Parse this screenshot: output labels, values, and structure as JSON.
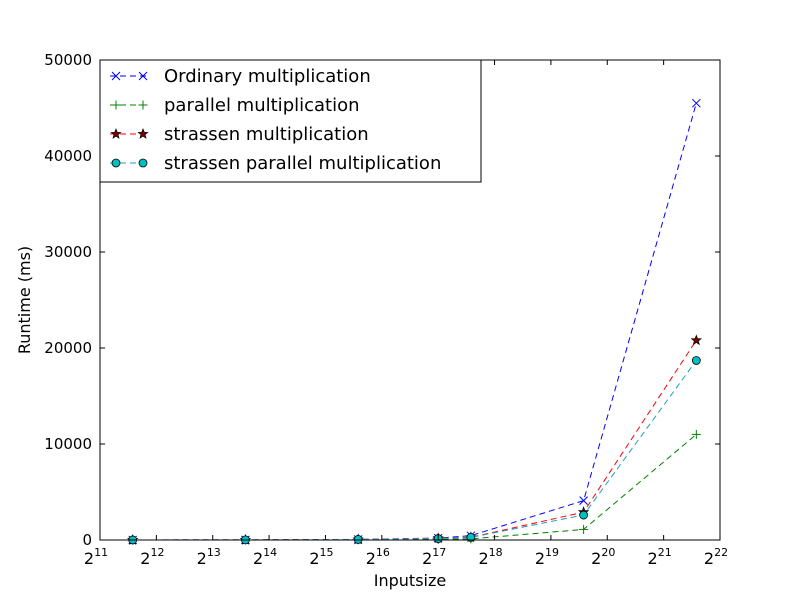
{
  "chart_data": {
    "type": "line",
    "title": "",
    "xlabel": "Inputsize",
    "ylabel": "Runtime (ms)",
    "x_scale": "log2",
    "xlim_exponent": [
      11,
      22
    ],
    "ylim": [
      0,
      50000
    ],
    "x_ticks": [
      {
        "base": "2",
        "exp": "11"
      },
      {
        "base": "2",
        "exp": "12"
      },
      {
        "base": "2",
        "exp": "13"
      },
      {
        "base": "2",
        "exp": "14"
      },
      {
        "base": "2",
        "exp": "15"
      },
      {
        "base": "2",
        "exp": "16"
      },
      {
        "base": "2",
        "exp": "17"
      },
      {
        "base": "2",
        "exp": "18"
      },
      {
        "base": "2",
        "exp": "19"
      },
      {
        "base": "2",
        "exp": "20"
      },
      {
        "base": "2",
        "exp": "21"
      },
      {
        "base": "2",
        "exp": "22"
      }
    ],
    "y_ticks": [
      "0",
      "10000",
      "20000",
      "30000",
      "40000",
      "50000"
    ],
    "grid": false,
    "legend_position": "top-left",
    "x_exponents": [
      11.58,
      13.58,
      15.58,
      17.0,
      17.58,
      19.58,
      21.58
    ],
    "series": [
      {
        "name": "Ordinary multiplication",
        "color": "#0000ff",
        "marker": "x",
        "values": [
          5,
          10,
          60,
          200,
          450,
          4100,
          45500
        ]
      },
      {
        "name": "parallel multiplication",
        "color": "#008000",
        "marker": "plus",
        "values": [
          2,
          5,
          20,
          60,
          120,
          1100,
          11000
        ]
      },
      {
        "name": "strassen multiplication",
        "color": "#ff0000",
        "marker": "star",
        "values": [
          4,
          10,
          60,
          180,
          280,
          2900,
          20800
        ]
      },
      {
        "name": "strassen parallel multiplication",
        "color": "#00bfbf",
        "marker": "circle",
        "values": [
          4,
          10,
          60,
          150,
          270,
          2600,
          18700
        ]
      }
    ]
  }
}
